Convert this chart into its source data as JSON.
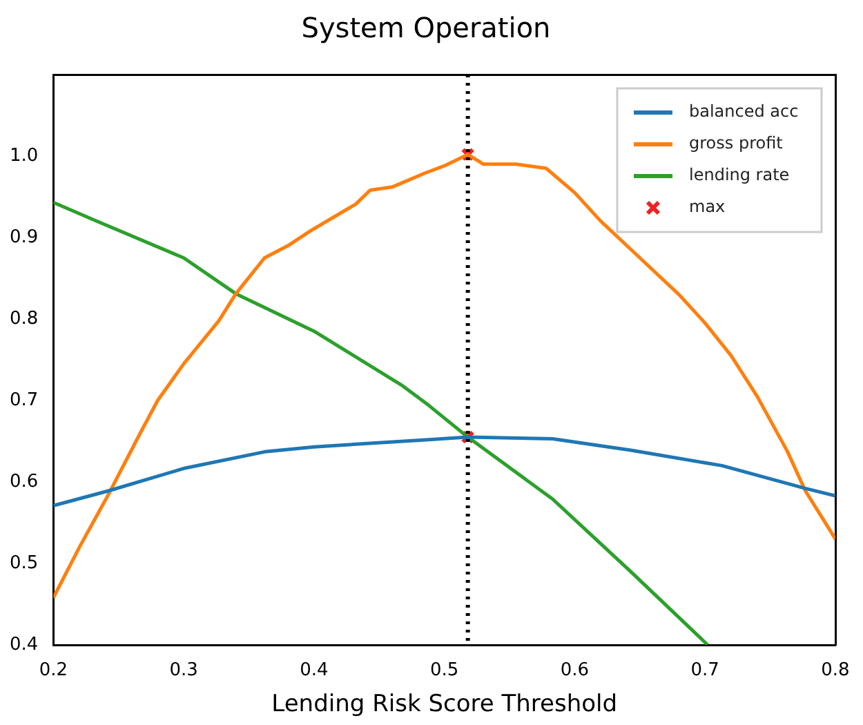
{
  "chart_data": {
    "type": "line",
    "title": "System Operation",
    "xlabel": "Lending Risk Score Threshold",
    "xlim": [
      0.2,
      0.8
    ],
    "xticks": [
      0.2,
      0.3,
      0.4,
      0.5,
      0.6,
      0.7,
      0.8
    ],
    "ylim": [
      0.4,
      1.1
    ],
    "yticks": [
      0.4,
      0.5,
      0.6,
      0.7,
      0.8,
      0.9,
      {
        "value": 1,
        "label": "1.0"
      }
    ],
    "grid": false,
    "legend": "top right",
    "marker": "none",
    "line_style": "solid",
    "ref_lines": [
      {
        "axis": "x",
        "value": 0.518,
        "color": "#000000",
        "line_style": "dotted"
      }
    ],
    "series": [
      {
        "name": "balanced acc",
        "color": "#1f77b4",
        "x": [
          0.2,
          0.242,
          0.301,
          0.362,
          0.4,
          0.488,
          0.518,
          0.583,
          0.643,
          0.713,
          0.777,
          0.8
        ],
        "values": [
          0.571,
          0.589,
          0.617,
          0.637,
          0.643,
          0.652,
          0.655,
          0.653,
          0.639,
          0.62,
          0.592,
          0.583
        ]
      },
      {
        "name": "gross profit",
        "color": "#ff7f0e",
        "x": [
          0.2,
          0.22,
          0.242,
          0.267,
          0.28,
          0.3,
          0.327,
          0.34,
          0.362,
          0.38,
          0.397,
          0.415,
          0.432,
          0.443,
          0.46,
          0.485,
          0.5,
          0.518,
          0.53,
          0.555,
          0.578,
          0.6,
          0.62,
          0.64,
          0.66,
          0.68,
          0.7,
          0.72,
          0.74,
          0.763,
          0.777,
          0.8
        ],
        "values": [
          0.458,
          0.52,
          0.584,
          0.661,
          0.7,
          0.745,
          0.798,
          0.831,
          0.875,
          0.89,
          0.908,
          0.925,
          0.941,
          0.958,
          0.962,
          0.979,
          0.988,
          1.002,
          0.99,
          0.99,
          0.985,
          0.955,
          0.92,
          0.89,
          0.86,
          0.83,
          0.795,
          0.755,
          0.705,
          0.638,
          0.589,
          0.53
        ]
      },
      {
        "name": "lending rate",
        "color": "#2ca02c",
        "x": [
          0.2,
          0.232,
          0.3,
          0.34,
          0.4,
          0.467,
          0.488,
          0.518,
          0.583,
          0.643,
          0.702
        ],
        "values": [
          0.943,
          0.921,
          0.875,
          0.831,
          0.785,
          0.719,
          0.694,
          0.655,
          0.579,
          0.49,
          0.4
        ]
      },
      {
        "name": "max",
        "type": "scatter",
        "marker": "cross",
        "color": "#ee2222",
        "x": [
          0.518,
          0.518
        ],
        "values": [
          1.002,
          0.655
        ]
      }
    ]
  }
}
